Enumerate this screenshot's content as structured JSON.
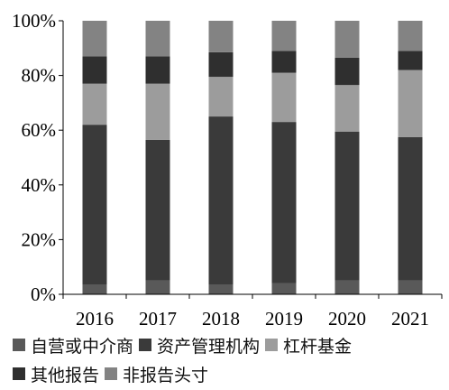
{
  "chart_data": {
    "type": "bar",
    "stacked": true,
    "categories": [
      "2016",
      "2017",
      "2018",
      "2019",
      "2020",
      "2021"
    ],
    "series": [
      {
        "name": "自营或中介商",
        "color": "#595959",
        "values": [
          3.5,
          5,
          3.5,
          4,
          5,
          5
        ]
      },
      {
        "name": "资产管理机构",
        "color": "#3a3a3a",
        "values": [
          58.5,
          51.5,
          61.5,
          59,
          54.5,
          52.5
        ]
      },
      {
        "name": "杠杆基金",
        "color": "#9c9c9c",
        "values": [
          15,
          20.5,
          14.5,
          18,
          17,
          24.5
        ]
      },
      {
        "name": "其他报告",
        "color": "#2f2f2f",
        "values": [
          10,
          10,
          9,
          8,
          10,
          7
        ]
      },
      {
        "name": "非报告头寸",
        "color": "#838383",
        "values": [
          13,
          13,
          11.5,
          11,
          13.5,
          11
        ]
      }
    ],
    "yticks": [
      "0%",
      "20%",
      "40%",
      "60%",
      "80%",
      "100%"
    ],
    "ylim": [
      0,
      100
    ],
    "title": "",
    "xlabel": "",
    "ylabel": "",
    "grid": false,
    "legend_position": "bottom"
  }
}
